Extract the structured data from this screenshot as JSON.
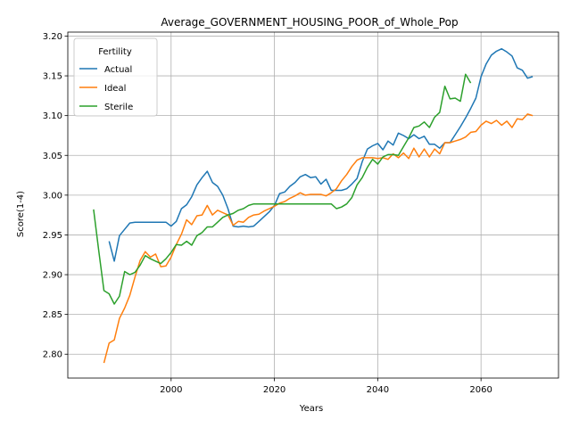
{
  "chart_data": {
    "type": "line",
    "title": "Average_GOVERNMENT_HOUSING_POOR_of_Whole_Pop",
    "xlabel": "Years",
    "ylabel": "Score(1-4)",
    "xlim": [
      1980,
      2075
    ],
    "ylim": [
      2.77,
      3.205
    ],
    "xticks": [
      2000,
      2020,
      2040,
      2060
    ],
    "yticks": [
      2.8,
      2.85,
      2.9,
      2.95,
      3.0,
      3.05,
      3.1,
      3.15,
      3.2
    ],
    "ytick_labels": [
      "2.80",
      "2.85",
      "2.90",
      "2.95",
      "3.00",
      "3.05",
      "3.10",
      "3.15",
      "3.20"
    ],
    "grid": true,
    "legend": {
      "title": "Fertility",
      "placement": "top-left"
    },
    "colors": {
      "Actual": "#1f77b4",
      "Ideal": "#ff7f0e",
      "Sterile": "#2ca02c"
    },
    "series": [
      {
        "name": "Actual",
        "x": [
          1988,
          1989,
          1990,
          1991,
          1992,
          1993,
          1994,
          1995,
          1996,
          1997,
          1998,
          1999,
          2000,
          2001,
          2002,
          2003,
          2004,
          2005,
          2006,
          2007,
          2008,
          2009,
          2010,
          2011,
          2012,
          2013,
          2014,
          2015,
          2016,
          2017,
          2018,
          2019,
          2020,
          2021,
          2022,
          2023,
          2024,
          2025,
          2026,
          2027,
          2028,
          2029,
          2030,
          2031,
          2032,
          2033,
          2034,
          2035,
          2036,
          2037,
          2038,
          2039,
          2040,
          2041,
          2042,
          2043,
          2044,
          2045,
          2046,
          2047,
          2048,
          2049,
          2050,
          2051,
          2052,
          2053,
          2054,
          2055,
          2056,
          2057,
          2058,
          2059,
          2060,
          2061,
          2062,
          2063,
          2064,
          2065,
          2066,
          2067,
          2068,
          2069,
          2070
        ],
        "values": [
          2.942,
          2.917,
          2.949,
          2.957,
          2.965,
          2.966,
          2.966,
          2.966,
          2.966,
          2.966,
          2.966,
          2.966,
          2.961,
          2.967,
          2.983,
          2.988,
          2.998,
          3.013,
          3.022,
          3.03,
          3.016,
          3.011,
          3.0,
          2.983,
          2.961,
          2.96,
          2.961,
          2.96,
          2.961,
          2.967,
          2.973,
          2.979,
          2.987,
          3.002,
          3.004,
          3.011,
          3.016,
          3.023,
          3.026,
          3.022,
          3.023,
          3.014,
          3.02,
          3.006,
          3.006,
          3.006,
          3.008,
          3.014,
          3.021,
          3.042,
          3.058,
          3.062,
          3.065,
          3.057,
          3.068,
          3.063,
          3.078,
          3.075,
          3.071,
          3.076,
          3.071,
          3.074,
          3.064,
          3.064,
          3.059,
          3.066,
          3.066,
          3.076,
          3.086,
          3.097,
          3.109,
          3.122,
          3.149,
          3.165,
          3.176,
          3.181,
          3.184,
          3.18,
          3.175,
          3.16,
          3.157,
          3.147,
          3.149
        ]
      },
      {
        "name": "Ideal",
        "x": [
          1987,
          1988,
          1989,
          1990,
          1991,
          1992,
          1993,
          1994,
          1995,
          1996,
          1997,
          1998,
          1999,
          2000,
          2001,
          2002,
          2003,
          2004,
          2005,
          2006,
          2007,
          2008,
          2009,
          2010,
          2011,
          2012,
          2013,
          2014,
          2015,
          2016,
          2017,
          2018,
          2019,
          2020,
          2021,
          2022,
          2023,
          2024,
          2025,
          2026,
          2027,
          2028,
          2029,
          2030,
          2031,
          2032,
          2033,
          2034,
          2035,
          2036,
          2037,
          2038,
          2039,
          2040,
          2041,
          2042,
          2043,
          2044,
          2045,
          2046,
          2047,
          2048,
          2049,
          2050,
          2051,
          2052,
          2053,
          2054,
          2055,
          2056,
          2057,
          2058,
          2059,
          2060,
          2061,
          2062,
          2063,
          2064,
          2065,
          2066,
          2067,
          2068,
          2069,
          2070
        ],
        "values": [
          2.789,
          2.814,
          2.818,
          2.845,
          2.858,
          2.874,
          2.897,
          2.918,
          2.929,
          2.922,
          2.926,
          2.91,
          2.911,
          2.922,
          2.938,
          2.951,
          2.969,
          2.963,
          2.974,
          2.975,
          2.987,
          2.975,
          2.981,
          2.978,
          2.975,
          2.962,
          2.967,
          2.966,
          2.972,
          2.975,
          2.976,
          2.98,
          2.983,
          2.986,
          2.99,
          2.992,
          2.996,
          2.999,
          3.003,
          3.0,
          3.001,
          3.001,
          3.001,
          2.999,
          3.003,
          3.008,
          3.018,
          3.026,
          3.036,
          3.044,
          3.047,
          3.047,
          3.047,
          3.046,
          3.047,
          3.045,
          3.052,
          3.047,
          3.053,
          3.046,
          3.059,
          3.048,
          3.058,
          3.048,
          3.058,
          3.052,
          3.066,
          3.066,
          3.068,
          3.07,
          3.073,
          3.079,
          3.08,
          3.088,
          3.093,
          3.09,
          3.094,
          3.088,
          3.093,
          3.085,
          3.096,
          3.095,
          3.102,
          3.1
        ]
      },
      {
        "name": "Sterile",
        "x": [
          1985,
          1986,
          1987,
          1988,
          1989,
          1990,
          1991,
          1992,
          1993,
          1994,
          1995,
          1996,
          1997,
          1998,
          1999,
          2000,
          2001,
          2002,
          2003,
          2004,
          2005,
          2006,
          2007,
          2008,
          2009,
          2010,
          2011,
          2012,
          2013,
          2014,
          2015,
          2016,
          2017,
          2018,
          2019,
          2020,
          2021,
          2022,
          2023,
          2024,
          2025,
          2026,
          2027,
          2028,
          2029,
          2030,
          2031,
          2032,
          2033,
          2034,
          2035,
          2036,
          2037,
          2038,
          2039,
          2040,
          2041,
          2042,
          2043,
          2044,
          2045,
          2046,
          2047,
          2048,
          2049,
          2050,
          2051,
          2052,
          2053,
          2054,
          2055,
          2056,
          2057,
          2058
        ],
        "values": [
          2.982,
          2.93,
          2.88,
          2.876,
          2.863,
          2.873,
          2.904,
          2.9,
          2.903,
          2.912,
          2.924,
          2.92,
          2.917,
          2.914,
          2.92,
          2.928,
          2.938,
          2.937,
          2.942,
          2.937,
          2.949,
          2.953,
          2.96,
          2.96,
          2.966,
          2.972,
          2.975,
          2.977,
          2.981,
          2.983,
          2.987,
          2.989,
          2.989,
          2.989,
          2.989,
          2.989,
          2.989,
          2.989,
          2.989,
          2.989,
          2.989,
          2.989,
          2.989,
          2.989,
          2.989,
          2.989,
          2.989,
          2.983,
          2.985,
          2.989,
          2.997,
          3.013,
          3.022,
          3.035,
          3.045,
          3.039,
          3.048,
          3.051,
          3.051,
          3.05,
          3.061,
          3.072,
          3.085,
          3.087,
          3.092,
          3.085,
          3.098,
          3.104,
          3.137,
          3.121,
          3.122,
          3.118,
          3.152,
          3.141
        ]
      }
    ]
  }
}
